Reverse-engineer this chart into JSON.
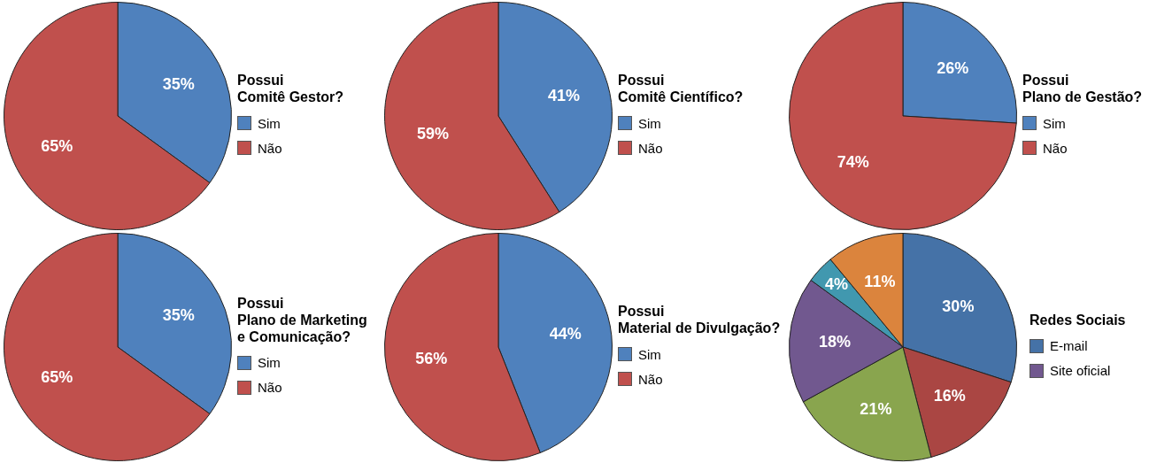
{
  "chart_data": [
    {
      "type": "pie",
      "legend_title": "Possui\nComitê Gestor?",
      "categories": [
        "Sim",
        "Não"
      ],
      "values": [
        35,
        65
      ],
      "colors": [
        "#4f81bd",
        "#c0504d"
      ],
      "value_labels": [
        "35%",
        "65%"
      ],
      "legend": "right"
    },
    {
      "type": "pie",
      "legend_title": "Possui\nComitê Científico?",
      "categories": [
        "Sim",
        "Não"
      ],
      "values": [
        41,
        59
      ],
      "colors": [
        "#4f81bd",
        "#c0504d"
      ],
      "value_labels": [
        "41%",
        "59%"
      ],
      "legend": "right"
    },
    {
      "type": "pie",
      "legend_title": "Possui\nPlano de Gestão?",
      "categories": [
        "Sim",
        "Não"
      ],
      "values": [
        26,
        74
      ],
      "colors": [
        "#4f81bd",
        "#c0504d"
      ],
      "value_labels": [
        "26%",
        "74%"
      ],
      "legend": "right"
    },
    {
      "type": "pie",
      "legend_title": "Possui\nPlano de Marketing\ne Comunicação?",
      "categories": [
        "Sim",
        "Não"
      ],
      "values": [
        35,
        65
      ],
      "colors": [
        "#4f81bd",
        "#c0504d"
      ],
      "value_labels": [
        "35%",
        "65%"
      ],
      "legend": "right"
    },
    {
      "type": "pie",
      "legend_title": "Possui\nMaterial de Divulgação?",
      "categories": [
        "Sim",
        "Não"
      ],
      "values": [
        44,
        56
      ],
      "colors": [
        "#4f81bd",
        "#c0504d"
      ],
      "value_labels": [
        "44%",
        "56%"
      ],
      "legend": "right"
    },
    {
      "type": "pie",
      "legend_title": "Redes Sociais",
      "categories": [
        "E-mail",
        null,
        null,
        "Site oficial",
        null,
        null
      ],
      "values": [
        30,
        16,
        21,
        18,
        4,
        11
      ],
      "colors": [
        "#4572a7",
        "#aa4643",
        "#89a54e",
        "#71588f",
        "#4198af",
        "#db843d"
      ],
      "value_labels": [
        "30%",
        "16%",
        "21%",
        "18%",
        "4%",
        "11%"
      ],
      "legend": "right"
    }
  ]
}
